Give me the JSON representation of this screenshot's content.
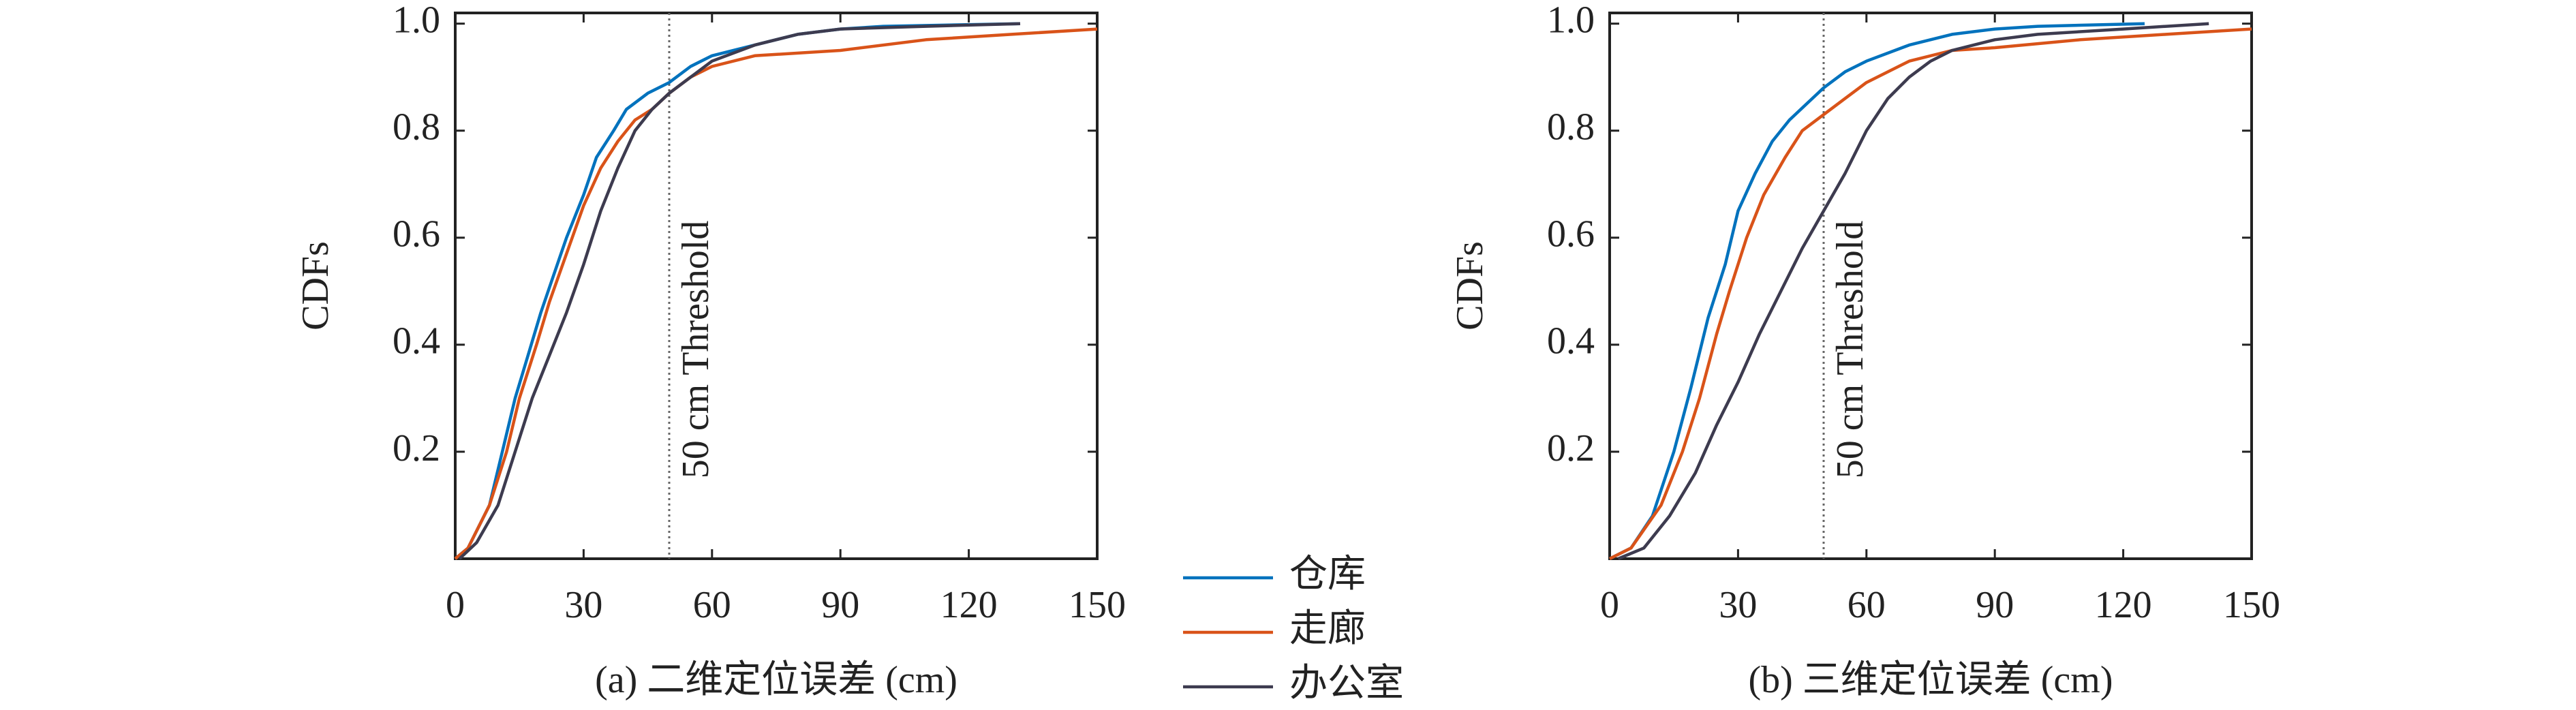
{
  "chart_data": [
    {
      "type": "line",
      "xlabel": "(a) 二维定位误差 (cm)",
      "ylabel": "CDFs",
      "xlim": [
        0,
        150
      ],
      "xticks": [
        0,
        30,
        60,
        90,
        120,
        150
      ],
      "ylim": [
        0,
        1.02
      ],
      "yticks": [
        0.2,
        0.4,
        0.6,
        0.8,
        {
          "value": 1,
          "label": "1.0"
        }
      ],
      "threshold": 50,
      "annotation": "50 cm Threshold",
      "series": [
        {
          "name": "仓库",
          "color": "#0072BD",
          "x": [
            0,
            3,
            8,
            11,
            14,
            17,
            20,
            23,
            26,
            30,
            33,
            37,
            40,
            45,
            50,
            55,
            60,
            70,
            80,
            90,
            100,
            132
          ],
          "values": [
            0,
            0.02,
            0.1,
            0.2,
            0.3,
            0.38,
            0.46,
            0.53,
            0.6,
            0.68,
            0.75,
            0.8,
            0.84,
            0.87,
            0.89,
            0.92,
            0.94,
            0.96,
            0.98,
            0.99,
            0.995,
            1.0
          ]
        },
        {
          "name": "走廊",
          "color": "#D95319",
          "x": [
            0,
            3,
            8,
            12,
            15,
            19,
            22,
            26,
            30,
            34,
            38,
            42,
            46,
            50,
            55,
            60,
            70,
            90,
            110,
            130,
            150
          ],
          "values": [
            0,
            0.02,
            0.1,
            0.2,
            0.3,
            0.4,
            0.48,
            0.57,
            0.66,
            0.73,
            0.78,
            0.82,
            0.84,
            0.87,
            0.9,
            0.92,
            0.94,
            0.95,
            0.97,
            0.98,
            0.99
          ]
        },
        {
          "name": "办公室",
          "color": "#3d3b4f",
          "x": [
            1,
            5,
            10,
            14,
            18,
            22,
            26,
            30,
            34,
            38,
            42,
            46,
            50,
            55,
            60,
            70,
            80,
            90,
            110,
            132
          ],
          "values": [
            0,
            0.03,
            0.1,
            0.2,
            0.3,
            0.38,
            0.46,
            0.55,
            0.65,
            0.73,
            0.8,
            0.84,
            0.87,
            0.9,
            0.93,
            0.96,
            0.98,
            0.99,
            0.995,
            1.0
          ]
        }
      ]
    },
    {
      "type": "line",
      "xlabel": "(b) 三维定位误差 (cm)",
      "ylabel": "CDFs",
      "xlim": [
        0,
        150
      ],
      "xticks": [
        0,
        30,
        60,
        90,
        120,
        150
      ],
      "ylim": [
        0,
        1.02
      ],
      "yticks": [
        0.2,
        0.4,
        0.6,
        0.8,
        {
          "value": 1,
          "label": "1.0"
        }
      ],
      "threshold": 50,
      "annotation": "50 cm Threshold",
      "series": [
        {
          "name": "仓库",
          "color": "#0072BD",
          "x": [
            0,
            5,
            10,
            15,
            19,
            23,
            27,
            30,
            34,
            38,
            42,
            46,
            50,
            55,
            60,
            70,
            80,
            90,
            100,
            125
          ],
          "values": [
            0,
            0.02,
            0.08,
            0.2,
            0.32,
            0.45,
            0.55,
            0.65,
            0.72,
            0.78,
            0.82,
            0.85,
            0.88,
            0.91,
            0.93,
            0.96,
            0.98,
            0.99,
            0.995,
            1.0
          ]
        },
        {
          "name": "走廊",
          "color": "#D95319",
          "x": [
            0,
            5,
            12,
            17,
            21,
            25,
            28,
            32,
            36,
            41,
            45,
            50,
            55,
            60,
            70,
            80,
            90,
            110,
            130,
            150
          ],
          "values": [
            0,
            0.02,
            0.1,
            0.2,
            0.3,
            0.42,
            0.5,
            0.6,
            0.68,
            0.75,
            0.8,
            0.83,
            0.86,
            0.89,
            0.93,
            0.95,
            0.955,
            0.97,
            0.98,
            0.99
          ]
        },
        {
          "name": "办公室",
          "color": "#3d3b4f",
          "x": [
            2,
            8,
            14,
            20,
            25,
            30,
            35,
            40,
            45,
            50,
            55,
            60,
            65,
            70,
            75,
            80,
            90,
            100,
            120,
            140
          ],
          "values": [
            0,
            0.02,
            0.08,
            0.16,
            0.25,
            0.33,
            0.42,
            0.5,
            0.58,
            0.65,
            0.72,
            0.8,
            0.86,
            0.9,
            0.93,
            0.95,
            0.97,
            0.98,
            0.99,
            1.0
          ]
        }
      ]
    }
  ]
}
